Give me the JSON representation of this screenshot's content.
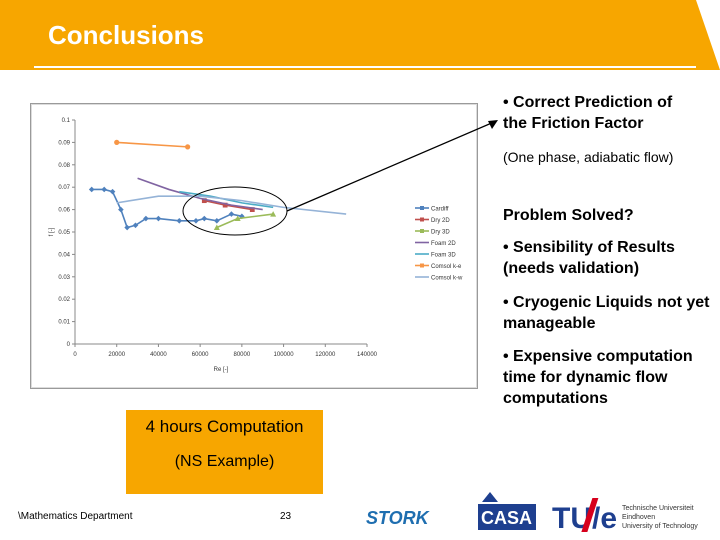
{
  "slide": {
    "title": "Conclusions",
    "bullets": [
      "• Correct Prediction of the Friction Factor",
      "(One phase, adiabatic flow)",
      "Problem Solved?",
      "• Sensibility of Results (needs validation)",
      "• Cryogenic Liquids not yet manageable",
      "• Expensive computation time for dynamic flow computations"
    ],
    "callout": {
      "line1": "4 hours  Computation",
      "line2": "(NS Example)"
    },
    "footer": {
      "department": "\\Mathematics Department",
      "page": "23"
    },
    "logos": {
      "stork": "STORK",
      "casa": "CASA",
      "tue": "TU/e",
      "tue_text": [
        "Technische Universiteit",
        "Eindhoven",
        "University of Technology"
      ]
    },
    "colors": {
      "accent": "#f7a600",
      "callout": "#f7a600"
    }
  },
  "chart_data": {
    "type": "line",
    "xlabel": "Re [-]",
    "ylabel": "f [-]",
    "xlim": [
      0,
      140000
    ],
    "ylim": [
      0,
      0.1
    ],
    "x_ticks": [
      "0",
      "20000",
      "40000",
      "60000",
      "80000",
      "100000",
      "120000",
      "140000"
    ],
    "y_ticks": [
      "0",
      "0.01",
      "0.02",
      "0.03",
      "0.04",
      "0.05",
      "0.06",
      "0.07",
      "0.08",
      "0.09",
      "0.1"
    ],
    "legend_position": "right",
    "series": [
      {
        "name": "Cardiff",
        "color": "#4f81bd",
        "marker": "diamond",
        "x": [
          8000,
          14000,
          18000,
          22000,
          25000,
          29000,
          34000,
          40000,
          50000,
          58000,
          62000,
          68000,
          75000,
          80000
        ],
        "y": [
          0.069,
          0.069,
          0.068,
          0.06,
          0.052,
          0.053,
          0.056,
          0.056,
          0.055,
          0.055,
          0.056,
          0.055,
          0.058,
          0.057
        ]
      },
      {
        "name": "Dry 2D",
        "color": "#c0504d",
        "marker": "square",
        "x": [
          62000,
          72000,
          85000
        ],
        "y": [
          0.064,
          0.062,
          0.06
        ]
      },
      {
        "name": "Dry 3D",
        "color": "#9bbb59",
        "marker": "triangle",
        "x": [
          68000,
          78000,
          95000
        ],
        "y": [
          0.052,
          0.056,
          0.058
        ]
      },
      {
        "name": "Foam 2D",
        "color": "#8064a2",
        "marker": "none",
        "x": [
          30000,
          45000,
          60000,
          75000,
          90000
        ],
        "y": [
          0.074,
          0.069,
          0.065,
          0.062,
          0.06
        ]
      },
      {
        "name": "Foam 3D",
        "color": "#4bacc6",
        "marker": "none",
        "x": [
          50000,
          65000,
          80000,
          95000
        ],
        "y": [
          0.068,
          0.066,
          0.063,
          0.061
        ]
      },
      {
        "name": "Comsol k-e",
        "color": "#f79646",
        "marker": "circle",
        "x": [
          20000,
          54000
        ],
        "y": [
          0.09,
          0.088
        ]
      },
      {
        "name": "Comsol k-w",
        "color": "#95b3d7",
        "marker": "none",
        "x": [
          20000,
          40000,
          60000,
          80000,
          100000,
          130000
        ],
        "y": [
          0.063,
          0.066,
          0.066,
          0.064,
          0.061,
          0.058
        ]
      }
    ]
  }
}
